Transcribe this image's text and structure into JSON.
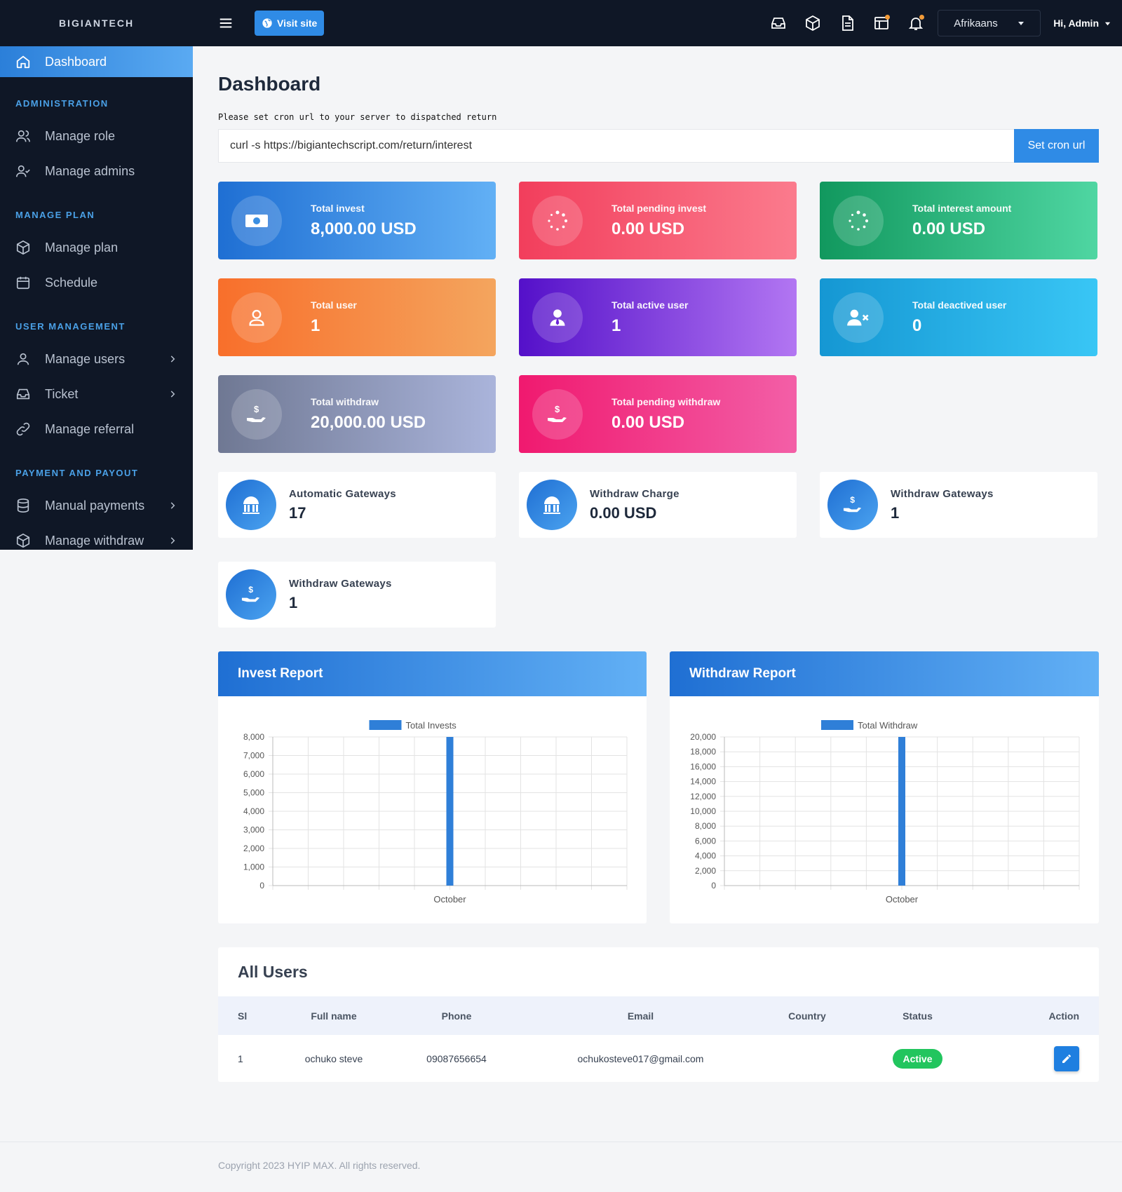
{
  "brand": "BIGIANTECH",
  "sidebar": {
    "active": "Dashboard",
    "sections": [
      {
        "title": "ADMINISTRATION",
        "items": [
          {
            "label": "Manage role"
          },
          {
            "label": "Manage admins"
          }
        ]
      },
      {
        "title": "MANAGE PLAN",
        "items": [
          {
            "label": "Manage plan"
          },
          {
            "label": "Schedule"
          }
        ]
      },
      {
        "title": "USER MANAGEMENT",
        "items": [
          {
            "label": "Manage users"
          },
          {
            "label": "Ticket"
          },
          {
            "label": "Manage referral"
          }
        ]
      },
      {
        "title": "PAYMENT AND PAYOUT",
        "items": [
          {
            "label": "Manual payments"
          },
          {
            "label": "Manage withdraw"
          }
        ]
      }
    ]
  },
  "topbar": {
    "visit_site": "Visit site",
    "language": "Afrikaans",
    "user": "Hi, Admin"
  },
  "page": {
    "title": "Dashboard",
    "cron_note": "Please set cron url to your server to dispatched return",
    "cron_url": "curl -s https://bigiantechscript.com/return/interest",
    "cron_button": "Set cron url"
  },
  "stats": [
    {
      "label": "Total invest",
      "value": "8,000.00 USD",
      "icon": "money-icon"
    },
    {
      "label": "Total pending invest",
      "value": "0.00 USD",
      "icon": "spinner-icon"
    },
    {
      "label": "Total interest amount",
      "value": "0.00 USD",
      "icon": "spinner-icon"
    },
    {
      "label": "Total user",
      "value": "1",
      "icon": "user-icon"
    },
    {
      "label": "Total active user",
      "value": "1",
      "icon": "user-tie-icon"
    },
    {
      "label": "Total deactived user",
      "value": "0",
      "icon": "user-x-icon"
    },
    {
      "label": "Total withdraw",
      "value": "20,000.00 USD",
      "icon": "hand-dollar-icon"
    },
    {
      "label": "Total pending withdraw",
      "value": "0.00 USD",
      "icon": "hand-dollar-icon"
    }
  ],
  "mini_stats": [
    {
      "label": "Automatic Gateways",
      "value": "17",
      "icon": "gateway-icon"
    },
    {
      "label": "Withdraw Charge",
      "value": "0.00 USD",
      "icon": "gateway-icon"
    },
    {
      "label": "Withdraw Gateways",
      "value": "1",
      "icon": "hand-dollar-icon"
    },
    {
      "label": "Withdraw Gateways",
      "value": "1",
      "icon": "hand-dollar-icon"
    }
  ],
  "reports": {
    "invest_title": "Invest Report",
    "withdraw_title": "Withdraw Report"
  },
  "chart_data": [
    {
      "type": "bar",
      "categories": [
        "October"
      ],
      "series": [
        {
          "name": "Total Invests",
          "values": [
            8000
          ]
        }
      ],
      "ylim": [
        0,
        8000
      ],
      "yticks": [
        "0",
        "1,000",
        "2,000",
        "3,000",
        "4,000",
        "5,000",
        "6,000",
        "7,000",
        "8,000"
      ],
      "color": "#2f7fd8"
    },
    {
      "type": "bar",
      "categories": [
        "October"
      ],
      "series": [
        {
          "name": "Total Withdraw",
          "values": [
            20000
          ]
        }
      ],
      "ylim": [
        0,
        20000
      ],
      "yticks": [
        "0",
        "2,000",
        "4,000",
        "6,000",
        "8,000",
        "10,000",
        "12,000",
        "14,000",
        "16,000",
        "18,000",
        "20,000"
      ],
      "color": "#2f7fd8"
    }
  ],
  "users": {
    "title": "All Users",
    "columns": [
      "Sl",
      "Full name",
      "Phone",
      "Email",
      "Country",
      "Status",
      "Action"
    ],
    "rows": [
      {
        "sl": "1",
        "name": "ochuko steve",
        "phone": "09087656654",
        "email": "ochukosteve017@gmail.com",
        "country": "",
        "status": "Active"
      }
    ]
  },
  "footer": "Copyright 2023 HYIP MAX. All rights reserved."
}
